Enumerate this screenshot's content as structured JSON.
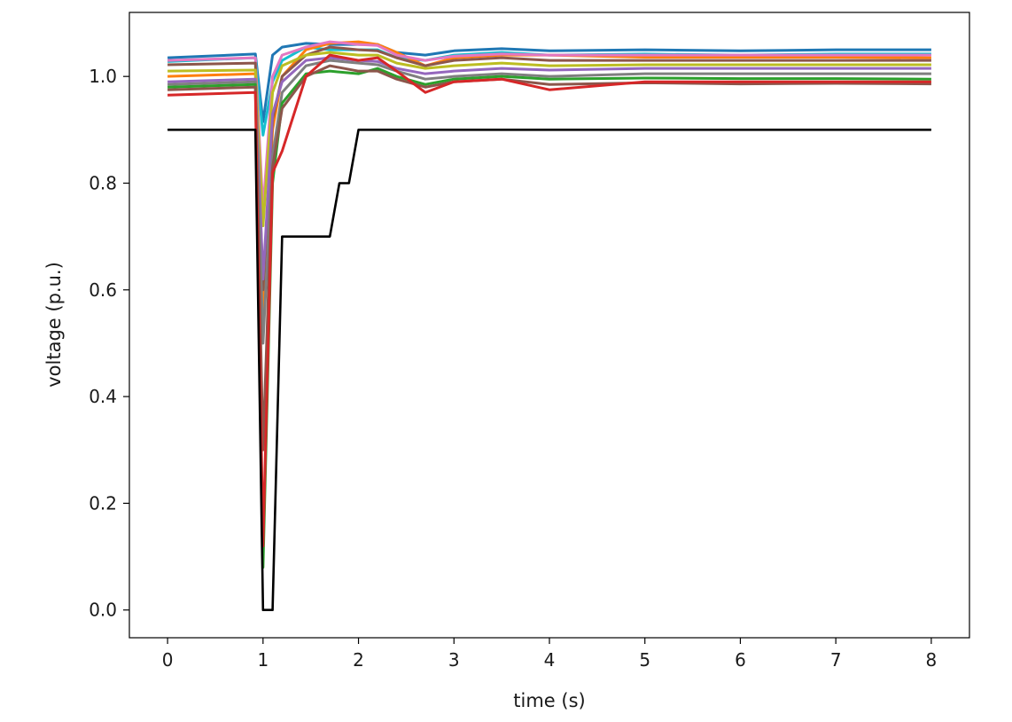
{
  "chart_data": {
    "type": "line",
    "title": "",
    "xlabel": "time (s)",
    "ylabel": "voltage (p.u.)",
    "xlim": [
      -0.4,
      8.4
    ],
    "ylim": [
      -0.052,
      1.12
    ],
    "xticks": [
      0,
      1,
      2,
      3,
      4,
      5,
      6,
      7,
      8
    ],
    "yticks": [
      0.0,
      0.2,
      0.4,
      0.6,
      0.8,
      1.0
    ],
    "xtick_labels": [
      "0",
      "1",
      "2",
      "3",
      "4",
      "5",
      "6",
      "7",
      "8"
    ],
    "ytick_labels": [
      "0.0",
      "0.2",
      "0.4",
      "0.6",
      "0.8",
      "1.0"
    ],
    "grid": false,
    "legend": "none",
    "colors": [
      "#1f77b4",
      "#ff7f0e",
      "#2ca02c",
      "#d62728",
      "#9467bd",
      "#8c564b",
      "#e377c2",
      "#7f7f7f",
      "#bcbd22",
      "#17becf"
    ],
    "series": [
      {
        "color": "#1f77b4",
        "x": [
          0,
          0.92,
          1.0,
          1.1,
          1.2,
          1.45,
          1.7,
          2.0,
          2.2,
          2.4,
          2.7,
          3.0,
          3.5,
          4.0,
          5.0,
          6.0,
          7.0,
          8.0
        ],
        "y": [
          1.035,
          1.042,
          0.915,
          1.04,
          1.055,
          1.062,
          1.06,
          1.06,
          1.06,
          1.045,
          1.04,
          1.048,
          1.052,
          1.048,
          1.05,
          1.048,
          1.05,
          1.05
        ]
      },
      {
        "color": "#17becf",
        "x": [
          0,
          0.92,
          1.0,
          1.1,
          1.2,
          1.45,
          1.7,
          2.0,
          2.2,
          2.4,
          2.7,
          3.0,
          3.5,
          4.0,
          5.0,
          6.0,
          7.0,
          8.0
        ],
        "y": [
          1.028,
          1.035,
          0.89,
          0.99,
          1.03,
          1.055,
          1.05,
          1.05,
          1.05,
          1.035,
          1.03,
          1.04,
          1.045,
          1.04,
          1.042,
          1.04,
          1.042,
          1.042
        ]
      },
      {
        "color": "#ff7f0e",
        "x": [
          0,
          0.92,
          1.0,
          1.1,
          1.2,
          1.45,
          1.7,
          2.0,
          2.2,
          2.4,
          2.7,
          3.0,
          3.5,
          4.0,
          5.0,
          6.0,
          7.0,
          8.0
        ],
        "y": [
          1.0,
          1.005,
          0.55,
          0.9,
          1.0,
          1.05,
          1.062,
          1.065,
          1.06,
          1.045,
          1.02,
          1.035,
          1.04,
          1.04,
          1.036,
          1.036,
          1.036,
          1.035
        ]
      },
      {
        "color": "#e377c2",
        "x": [
          0,
          0.92,
          1.0,
          1.1,
          1.2,
          1.45,
          1.7,
          2.0,
          2.2,
          2.4,
          2.7,
          3.0,
          3.5,
          4.0,
          5.0,
          6.0,
          7.0,
          8.0
        ],
        "y": [
          1.03,
          1.035,
          0.75,
          1.0,
          1.04,
          1.055,
          1.065,
          1.06,
          1.058,
          1.04,
          1.03,
          1.038,
          1.042,
          1.04,
          1.04,
          1.04,
          1.04,
          1.04
        ]
      },
      {
        "color": "#8c564b",
        "x": [
          0,
          0.92,
          1.0,
          1.1,
          1.2,
          1.45,
          1.7,
          2.0,
          2.2,
          2.4,
          2.7,
          3.0,
          3.5,
          4.0,
          5.0,
          6.0,
          7.0,
          8.0
        ],
        "y": [
          1.022,
          1.025,
          0.6,
          0.92,
          1.0,
          1.04,
          1.055,
          1.05,
          1.048,
          1.035,
          1.02,
          1.03,
          1.035,
          1.03,
          1.03,
          1.03,
          1.03,
          1.03
        ]
      },
      {
        "color": "#bcbd22",
        "x": [
          0,
          0.92,
          1.0,
          1.1,
          1.2,
          1.45,
          1.7,
          2.0,
          2.2,
          2.4,
          2.7,
          3.0,
          3.5,
          4.0,
          5.0,
          6.0,
          7.0,
          8.0
        ],
        "y": [
          1.01,
          1.012,
          0.72,
          0.97,
          1.02,
          1.04,
          1.045,
          1.04,
          1.04,
          1.025,
          1.015,
          1.02,
          1.025,
          1.02,
          1.022,
          1.022,
          1.022,
          1.022
        ]
      },
      {
        "color": "#9467bd",
        "x": [
          0,
          0.92,
          1.0,
          1.1,
          1.2,
          1.45,
          1.7,
          2.0,
          2.2,
          2.4,
          2.7,
          3.0,
          3.5,
          4.0,
          5.0,
          6.0,
          7.0,
          8.0
        ],
        "y": [
          0.99,
          0.995,
          0.62,
          0.93,
          0.99,
          1.03,
          1.035,
          1.03,
          1.028,
          1.015,
          1.005,
          1.01,
          1.015,
          1.012,
          1.015,
          1.015,
          1.015,
          1.015
        ]
      },
      {
        "color": "#7f7f7f",
        "x": [
          0,
          0.92,
          1.0,
          1.1,
          1.2,
          1.45,
          1.7,
          2.0,
          2.2,
          2.4,
          2.7,
          3.0,
          3.5,
          4.0,
          5.0,
          6.0,
          7.0,
          8.0
        ],
        "y": [
          0.985,
          0.99,
          0.5,
          0.85,
          0.97,
          1.02,
          1.03,
          1.025,
          1.022,
          1.01,
          0.995,
          1.0,
          1.005,
          1.0,
          1.005,
          1.005,
          1.005,
          1.005
        ]
      },
      {
        "color": "#2ca02c",
        "x": [
          0,
          0.92,
          1.0,
          1.1,
          1.2,
          1.45,
          1.7,
          2.0,
          2.2,
          2.4,
          2.7,
          3.0,
          3.5,
          4.0,
          5.0,
          6.0,
          7.0,
          8.0
        ],
        "y": [
          0.98,
          0.985,
          0.08,
          0.8,
          0.95,
          1.005,
          1.01,
          1.005,
          1.015,
          1.0,
          0.985,
          0.995,
          1.0,
          0.995,
          0.997,
          0.996,
          0.996,
          0.995
        ]
      },
      {
        "color": "#8c564b",
        "x": [
          0,
          0.92,
          1.0,
          1.1,
          1.2,
          1.45,
          1.7,
          2.0,
          2.2,
          2.4,
          2.7,
          3.0,
          3.5,
          4.0,
          5.0,
          6.0,
          7.0,
          8.0
        ],
        "y": [
          0.975,
          0.98,
          0.3,
          0.83,
          0.94,
          1.0,
          1.02,
          1.01,
          1.01,
          0.995,
          0.98,
          0.99,
          0.995,
          0.985,
          0.988,
          0.986,
          0.987,
          0.986
        ]
      },
      {
        "color": "#d62728",
        "x": [
          0,
          0.92,
          1.0,
          1.1,
          1.2,
          1.45,
          1.7,
          2.0,
          2.2,
          2.4,
          2.7,
          3.0,
          3.5,
          4.0,
          5.0,
          6.0,
          7.0,
          8.0
        ],
        "y": [
          0.965,
          0.97,
          0.12,
          0.82,
          0.86,
          1.0,
          1.04,
          1.03,
          1.035,
          1.01,
          0.97,
          0.99,
          0.995,
          0.975,
          0.99,
          0.99,
          0.99,
          0.99
        ]
      },
      {
        "color": "#000000",
        "x": [
          0,
          0.92,
          1.0,
          1.1,
          1.2,
          1.7,
          1.8,
          1.9,
          2.0,
          8.0
        ],
        "y": [
          0.9,
          0.9,
          0.0,
          0.0,
          0.7,
          0.7,
          0.8,
          0.8,
          0.9,
          0.9
        ]
      }
    ]
  }
}
